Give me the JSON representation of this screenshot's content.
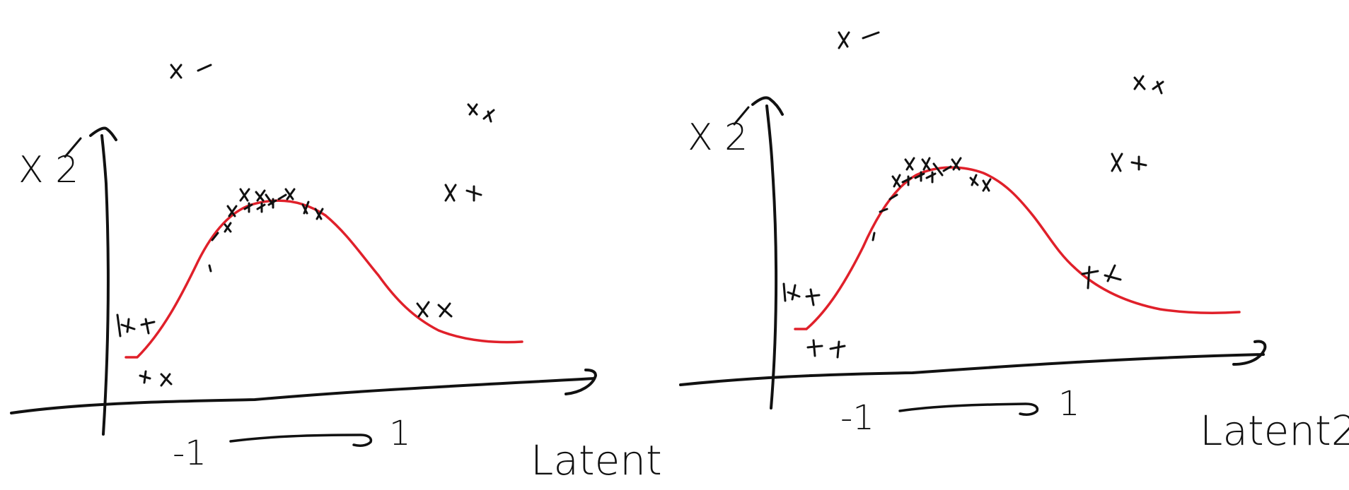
{
  "colors": {
    "ink": "#111111",
    "curve": "#e0202a"
  },
  "left_panel": {
    "y_label": "X 2",
    "x_label": "Latent",
    "range_start": "-1",
    "range_end": "1"
  },
  "right_panel": {
    "y_label": "X 2",
    "x_label": "Latent2",
    "range_start": "-1",
    "range_end": "1"
  }
}
